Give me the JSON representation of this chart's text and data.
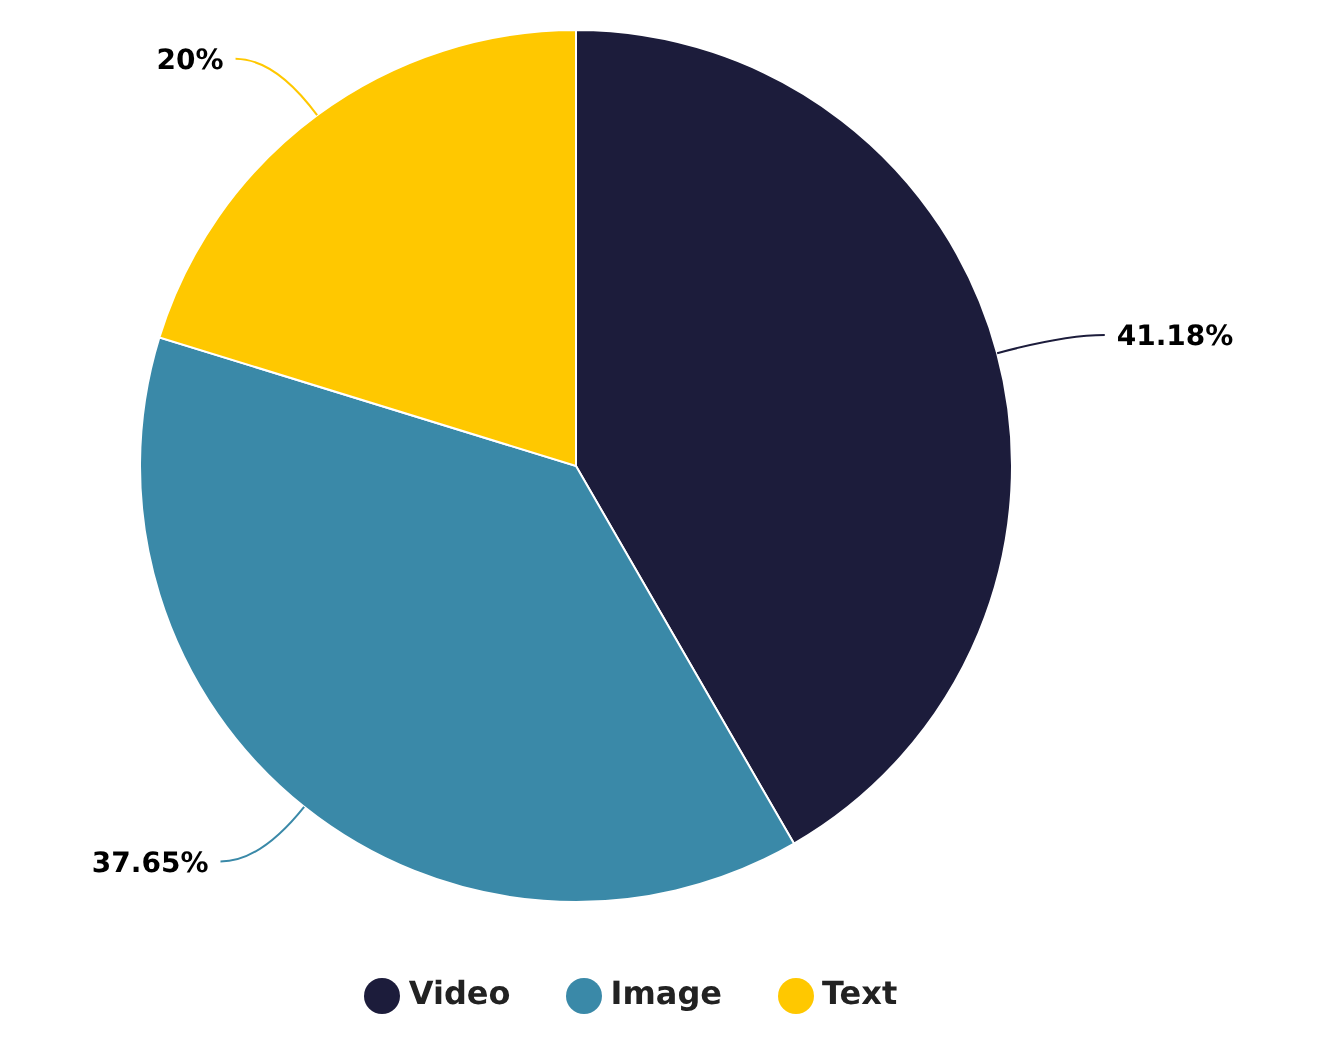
{
  "chart_data": {
    "type": "pie",
    "categories": [
      "Video",
      "Image",
      "Text"
    ],
    "values": [
      41.18,
      37.65,
      20
    ],
    "colors": [
      "#1c1c3b",
      "#3a89a8",
      "#ffc800"
    ],
    "value_labels": [
      "41.18%",
      "37.65%",
      "20%"
    ],
    "legend": "bottom"
  }
}
